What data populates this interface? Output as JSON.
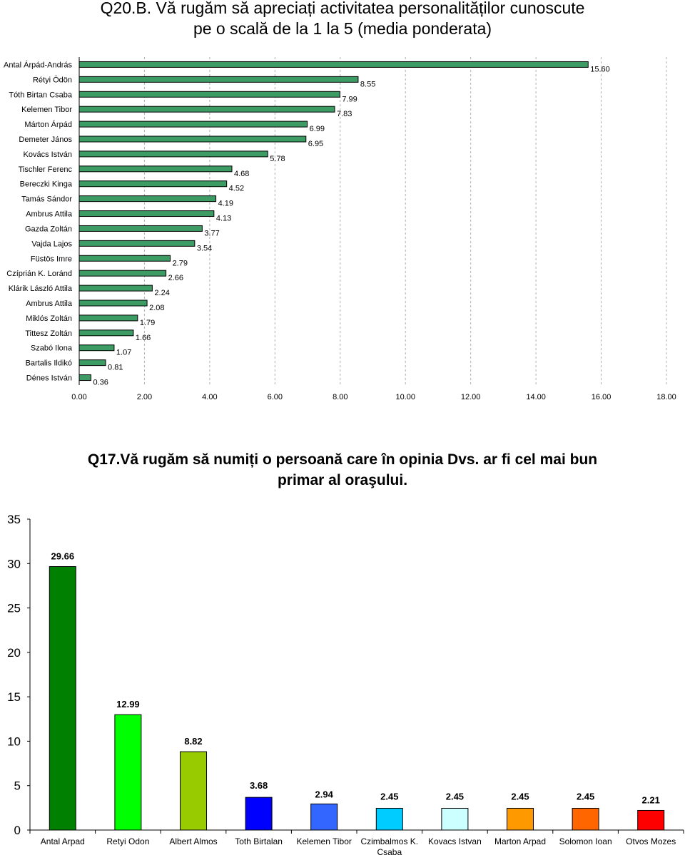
{
  "chart_data": [
    {
      "type": "bar",
      "orientation": "horizontal",
      "title": "Q20.B. Vă rugăm să apreciați activitatea personalităților cunoscute pe o scală de la 1 la 5 (media ponderata)",
      "title_lines": [
        "Q20.B. Vă rugăm să apreciați activitatea personalităților cunoscute",
        "pe o scală de la 1 la 5 (media ponderata)"
      ],
      "categories": [
        "Antal Árpád-András",
        "Rétyi Ödön",
        "Tóth Birtan Csaba",
        "Kelemen Tibor",
        "Márton Árpád",
        "Demeter János",
        "Kovács István",
        "Tischler Ferenc",
        "Bereczki Kinga",
        "Tamás Sándor",
        "Ambrus Attila",
        "Gazda Zoltán",
        "Vajda Lajos",
        "Füstös Imre",
        "Czíprián K. Loránd",
        "Klárik László Attila",
        "Ambrus Attila",
        "Miklós Zoltán",
        "Tittesz Zoltán",
        "Szabó Ilona",
        "Bartalis Ildikó",
        "Dénes István"
      ],
      "values": [
        15.6,
        8.55,
        7.99,
        7.83,
        6.99,
        6.95,
        5.78,
        4.68,
        4.52,
        4.19,
        4.13,
        3.77,
        3.54,
        2.79,
        2.66,
        2.24,
        2.08,
        1.79,
        1.66,
        1.07,
        0.81,
        0.36
      ],
      "value_labels": [
        "15.60",
        "8.55",
        "7.99",
        "7.83",
        "6.99",
        "6.95",
        "5.78",
        "4.68",
        "4.52",
        "4.19",
        "4.13",
        "3.77",
        "3.54",
        "2.79",
        "2.66",
        "2.24",
        "2.08",
        "1.79",
        "1.66",
        "1.07",
        "0.81",
        "0.36"
      ],
      "xlim": [
        0,
        18
      ],
      "x_ticks": [
        "0.00",
        "2.00",
        "4.00",
        "6.00",
        "8.00",
        "10.00",
        "12.00",
        "14.00",
        "16.00",
        "18.00"
      ],
      "bar_color": "#3c9c64",
      "grid": "vertical dashed"
    },
    {
      "type": "bar",
      "orientation": "vertical",
      "title": "Q17.Vă rugăm să numiți o persoană care în opinia Dvs. ar fi cel mai bun primar al oraşului.",
      "title_lines": [
        "Q17.Vă rugăm să numiți o persoană care în opinia Dvs. ar fi cel mai bun",
        "primar al oraşului."
      ],
      "categories": [
        "Antal Arpad",
        "Retyi Odon",
        "Albert Almos",
        "Toth Birtalan",
        "Kelemen Tibor",
        "Czimbalmos K. Csaba",
        "Kovacs Istvan",
        "Marton Arpad",
        "Solomon Ioan",
        "Otvos Mozes"
      ],
      "category_lines": [
        [
          "Antal Arpad"
        ],
        [
          "Retyi Odon"
        ],
        [
          "Albert Almos"
        ],
        [
          "Toth Birtalan"
        ],
        [
          "Kelemen Tibor"
        ],
        [
          "Czimbalmos K.",
          "Csaba"
        ],
        [
          "Kovacs Istvan"
        ],
        [
          "Marton Arpad"
        ],
        [
          "Solomon Ioan"
        ],
        [
          "Otvos Mozes"
        ]
      ],
      "values": [
        29.66,
        12.99,
        8.82,
        3.68,
        2.94,
        2.45,
        2.45,
        2.45,
        2.45,
        2.21
      ],
      "value_labels": [
        "29.66",
        "12.99",
        "8.82",
        "3.68",
        "2.94",
        "2.45",
        "2.45",
        "2.45",
        "2.45",
        "2.21"
      ],
      "colors": [
        "#008000",
        "#00ff00",
        "#99cc00",
        "#0000ff",
        "#3366ff",
        "#00ccff",
        "#ccffff",
        "#ff9900",
        "#ff6600",
        "#ff0000"
      ],
      "ylim": [
        0,
        35
      ],
      "y_ticks": [
        "0",
        "5",
        "10",
        "15",
        "20",
        "25",
        "30",
        "35"
      ],
      "grid": "none"
    }
  ]
}
